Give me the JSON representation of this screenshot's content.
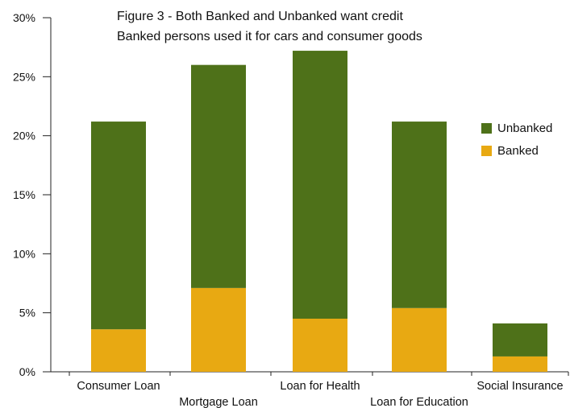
{
  "chart_data": {
    "type": "bar",
    "stacked": true,
    "title_lines": [
      "Figure 3 -  Both Banked and Unbanked want credit",
      "Banked persons used it for cars and consumer goods"
    ],
    "categories": [
      "Consumer Loan",
      "Mortgage Loan",
      "Loan for Health",
      "Loan for Education",
      "Social Insurance"
    ],
    "series": [
      {
        "name": "Banked",
        "color": "#E8A912",
        "values": [
          3.6,
          7.1,
          4.5,
          5.4,
          1.3
        ]
      },
      {
        "name": "Unbanked",
        "color": "#4E7119",
        "values": [
          17.6,
          18.9,
          22.7,
          15.8,
          2.8
        ]
      }
    ],
    "y_ticks": [
      "0%",
      "5%",
      "10%",
      "15%",
      "20%",
      "25%",
      "30%"
    ],
    "y_tick_values": [
      0,
      5,
      10,
      15,
      20,
      25,
      30
    ],
    "ylim": [
      0,
      30
    ],
    "legend_order": [
      "Unbanked",
      "Banked"
    ],
    "legend_position": "right",
    "grid": false
  }
}
